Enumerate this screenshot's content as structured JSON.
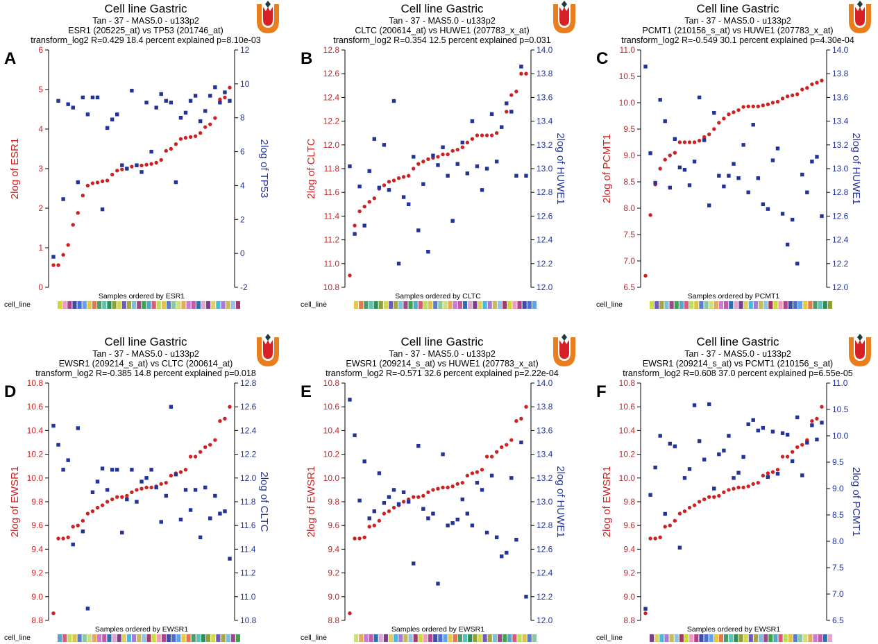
{
  "figure": {
    "colors": {
      "primary": "#cc2222",
      "secondary": "#223399",
      "axis": "#000000",
      "logo_orange": "#e87e1e",
      "logo_red": "#d71f26",
      "logo_dark": "#1f3a3a"
    },
    "cell_palette": [
      "#cdd83a",
      "#9b4a8c",
      "#4ab8d6",
      "#8fa03b",
      "#c25aa6",
      "#e7c84a",
      "#5a7fc8",
      "#f39bbf",
      "#3fa34d",
      "#a77bd1",
      "#d4d84e",
      "#2e6fb0",
      "#e3784a",
      "#88c9a1",
      "#b0448a",
      "#58a6c7",
      "#c9b85c",
      "#6f5bb8",
      "#e0a5d0",
      "#4d9a6a",
      "#cfe07a",
      "#3c4fa3",
      "#d65c7a",
      "#93c3e0",
      "#a8a248",
      "#7c3f8e",
      "#5dc2b3",
      "#e6a85a",
      "#4a6fd1",
      "#bde05c",
      "#a33a66",
      "#7bbfd9",
      "#dcd064",
      "#2f8f5a",
      "#c77ad6",
      "#63a1e8",
      "#e2c34a"
    ],
    "charts": [
      {
        "panel_label": "A",
        "chart_data": {
          "type": "scatter",
          "title": "Cell line Gastric",
          "subtitle": "Tan - 37 - MAS5.0 - u133p2",
          "comparison": "ESR1 (205225_at) vs TP53 (201746_at)",
          "stats": "transform_log2 R=0.429 18.4 percent explained p=8.10e-03",
          "xlabel": "Samples ordered by ESR1",
          "ylabel_left": "2log of ESR1",
          "ylabel_right": "2log of TP53",
          "row_label": "cell_line",
          "ylim_left": [
            0,
            6
          ],
          "ylim_right": [
            -2,
            12
          ],
          "yticks_left": [
            0,
            1,
            2,
            3,
            4,
            5,
            6
          ],
          "yticks_right": [
            -2,
            0,
            2,
            4,
            6,
            8,
            10,
            12
          ],
          "series": [
            {
              "name": "ESR1",
              "axis": "left",
              "values": [
                0.56,
                0.56,
                0.82,
                1.07,
                1.58,
                1.88,
                2.32,
                2.57,
                2.63,
                2.65,
                2.68,
                2.7,
                2.85,
                2.95,
                2.98,
                3.0,
                3.05,
                3.08,
                3.08,
                3.1,
                3.12,
                3.15,
                3.22,
                3.45,
                3.5,
                3.62,
                3.75,
                3.78,
                3.8,
                3.82,
                3.9,
                4.05,
                4.12,
                4.28,
                4.75,
                4.8,
                5.05
              ]
            },
            {
              "name": "TP53",
              "axis": "right",
              "values": [
                -0.2,
                9.0,
                3.2,
                8.8,
                8.6,
                4.2,
                9.2,
                8.2,
                9.2,
                9.2,
                2.6,
                7.4,
                7.9,
                8.2,
                5.2,
                5.0,
                9.6,
                5.2,
                4.8,
                8.9,
                6.0,
                8.6,
                9.4,
                9.0,
                8.9,
                4.2,
                8.0,
                8.3,
                9.0,
                9.3,
                7.8,
                8.4,
                9.3,
                9.8,
                8.9,
                9.5,
                9.0
              ]
            }
          ]
        }
      },
      {
        "panel_label": "B",
        "chart_data": {
          "type": "scatter",
          "title": "Cell line Gastric",
          "subtitle": "Tan - 37 - MAS5.0 - u133p2",
          "comparison": "CLTC (200614_at) vs HUWE1 (207783_x_at)",
          "stats": "transform_log2 R=0.354 12.5 percent explained p=0.031",
          "xlabel": "Samples ordered by CLTC",
          "ylabel_left": "2log of CLTC",
          "ylabel_right": "2log of HUWE1",
          "row_label": "cell_line",
          "ylim_left": [
            10.8,
            12.8
          ],
          "ylim_right": [
            12.0,
            14.0
          ],
          "yticks_left": [
            10.8,
            11.0,
            11.2,
            11.4,
            11.6,
            11.8,
            12.0,
            12.2,
            12.4,
            12.6,
            12.8
          ],
          "yticks_right": [
            12.0,
            12.2,
            12.4,
            12.6,
            12.8,
            13.0,
            13.2,
            13.4,
            13.6,
            13.8,
            14.0
          ],
          "series": [
            {
              "name": "CLTC",
              "axis": "left",
              "values": [
                10.9,
                11.32,
                11.44,
                11.48,
                11.52,
                11.55,
                11.63,
                11.66,
                11.69,
                11.7,
                11.72,
                11.73,
                11.74,
                11.8,
                11.84,
                11.86,
                11.88,
                11.89,
                11.9,
                11.92,
                11.92,
                11.95,
                11.96,
                11.98,
                12.02,
                12.05,
                12.08,
                12.08,
                12.08,
                12.08,
                12.1,
                12.15,
                12.28,
                12.42,
                12.45,
                12.6,
                12.6
              ]
            },
            {
              "name": "HUWE1",
              "axis": "right",
              "values": [
                13.02,
                12.45,
                12.85,
                12.52,
                12.98,
                13.25,
                12.84,
                13.2,
                12.82,
                13.57,
                12.2,
                12.76,
                12.7,
                13.1,
                12.48,
                12.87,
                12.3,
                13.11,
                13.03,
                13.18,
                12.94,
                12.56,
                13.04,
                13.22,
                12.96,
                13.4,
                13.02,
                12.82,
                13.0,
                13.46,
                13.06,
                13.35,
                13.55,
                13.48,
                12.94,
                13.86,
                12.94
              ]
            }
          ]
        }
      },
      {
        "panel_label": "C",
        "chart_data": {
          "type": "scatter",
          "title": "Cell line Gastric",
          "subtitle": "Tan - 37 - MAS5.0 - u133p2",
          "comparison": "PCMT1 (210156_s_at) vs HUWE1 (207783_x_at)",
          "stats": "transform_log2 R=-0.549 30.1 percent explained p=4.30e-04",
          "xlabel": "Samples ordered by PCMT1",
          "ylabel_left": "2log of PCMT1",
          "ylabel_right": "2log of HUWE1",
          "row_label": "cell_line",
          "ylim_left": [
            6.5,
            11.0
          ],
          "ylim_right": [
            12.0,
            14.0
          ],
          "yticks_left": [
            6.5,
            7.0,
            7.5,
            8.0,
            8.5,
            9.0,
            9.5,
            10.0,
            10.5,
            11.0
          ],
          "yticks_right": [
            12.0,
            12.2,
            12.4,
            12.6,
            12.8,
            13.0,
            13.2,
            13.4,
            13.6,
            13.8,
            14.0
          ],
          "series": [
            {
              "name": "PCMT1",
              "axis": "left",
              "values": [
                6.72,
                7.87,
                8.45,
                8.75,
                8.92,
                9.0,
                9.05,
                9.25,
                9.25,
                9.25,
                9.25,
                9.28,
                9.35,
                9.4,
                9.5,
                9.62,
                9.7,
                9.78,
                9.82,
                9.86,
                9.92,
                9.93,
                9.93,
                9.93,
                9.95,
                9.97,
                10.0,
                10.02,
                10.08,
                10.12,
                10.14,
                10.16,
                10.25,
                10.28,
                10.35,
                10.38,
                10.42
              ]
            },
            {
              "name": "HUWE1",
              "axis": "right",
              "values": [
                13.86,
                13.13,
                12.88,
                13.58,
                13.4,
                12.84,
                13.25,
                13.01,
                12.99,
                12.86,
                13.06,
                13.6,
                13.24,
                12.69,
                13.47,
                12.94,
                12.85,
                12.94,
                13.04,
                12.92,
                13.2,
                12.8,
                13.37,
                12.92,
                12.7,
                12.66,
                13.07,
                13.17,
                12.62,
                12.36,
                12.57,
                12.2,
                12.95,
                12.8,
                13.06,
                13.1,
                12.6
              ]
            }
          ]
        }
      },
      {
        "panel_label": "D",
        "chart_data": {
          "type": "scatter",
          "title": "Cell line Gastric",
          "subtitle": "Tan - 37 - MAS5.0 - u133p2",
          "comparison": "EWSR1 (209214_s_at) vs CLTC (200614_at)",
          "stats": "transform_log2 R=-0.385 14.8 percent explained p=0.018",
          "xlabel": "Samples ordered by EWSR1",
          "ylabel_left": "2log of EWSR1",
          "ylabel_right": "2log of CLTC",
          "row_label": "cell_line",
          "ylim_left": [
            8.8,
            10.8
          ],
          "ylim_right": [
            10.8,
            12.8
          ],
          "yticks_left": [
            8.8,
            9.0,
            9.2,
            9.4,
            9.6,
            9.8,
            10.0,
            10.2,
            10.4,
            10.6,
            10.8
          ],
          "yticks_right": [
            10.8,
            11.0,
            11.2,
            11.4,
            11.6,
            11.8,
            12.0,
            12.2,
            12.4,
            12.6,
            12.8
          ],
          "series": [
            {
              "name": "EWSR1",
              "axis": "left",
              "values": [
                8.86,
                9.49,
                9.49,
                9.5,
                9.59,
                9.6,
                9.64,
                9.7,
                9.72,
                9.75,
                9.77,
                9.8,
                9.82,
                9.84,
                9.84,
                9.85,
                9.88,
                9.9,
                9.91,
                9.92,
                9.92,
                9.93,
                9.95,
                9.96,
                10.02,
                10.04,
                10.05,
                10.07,
                10.18,
                10.18,
                10.22,
                10.26,
                10.28,
                10.32,
                10.48,
                10.5,
                10.6
              ]
            },
            {
              "name": "CLTC",
              "axis": "right",
              "values": [
                12.44,
                12.28,
                12.07,
                12.15,
                11.44,
                12.42,
                11.55,
                10.9,
                11.88,
                11.97,
                12.08,
                11.9,
                12.07,
                12.07,
                11.54,
                11.82,
                12.07,
                11.8,
                11.97,
                12.0,
                12.07,
                11.92,
                11.63,
                11.85,
                12.6,
                12.03,
                11.65,
                11.9,
                11.73,
                11.9,
                11.5,
                11.92,
                11.66,
                11.85,
                11.7,
                11.72,
                11.32
              ]
            }
          ]
        }
      },
      {
        "panel_label": "E",
        "chart_data": {
          "type": "scatter",
          "title": "Cell line Gastric",
          "subtitle": "Tan - 37 - MAS5.0 - u133p2",
          "comparison": "EWSR1 (209214_s_at) vs HUWE1 (207783_x_at)",
          "stats": "transform_log2 R=-0.571 32.6 percent explained p=2.22e-04",
          "xlabel": "Samples ordered by EWSR1",
          "ylabel_left": "2log of EWSR1",
          "ylabel_right": "2log of HUWE1",
          "row_label": "cell_line",
          "ylim_left": [
            8.8,
            10.8
          ],
          "ylim_right": [
            12.0,
            14.0
          ],
          "yticks_left": [
            8.8,
            9.0,
            9.2,
            9.4,
            9.6,
            9.8,
            10.0,
            10.2,
            10.4,
            10.6,
            10.8
          ],
          "yticks_right": [
            12.0,
            12.2,
            12.4,
            12.6,
            12.8,
            13.0,
            13.2,
            13.4,
            13.6,
            13.8,
            14.0
          ],
          "series": [
            {
              "name": "EWSR1",
              "axis": "left",
              "values": [
                8.86,
                9.49,
                9.49,
                9.5,
                9.59,
                9.6,
                9.64,
                9.7,
                9.72,
                9.75,
                9.77,
                9.8,
                9.82,
                9.84,
                9.84,
                9.85,
                9.88,
                9.9,
                9.91,
                9.92,
                9.92,
                9.93,
                9.95,
                9.96,
                10.02,
                10.04,
                10.05,
                10.07,
                10.18,
                10.18,
                10.22,
                10.26,
                10.28,
                10.32,
                10.48,
                10.5,
                10.6
              ]
            },
            {
              "name": "HUWE1",
              "axis": "right",
              "values": [
                13.86,
                13.56,
                13.01,
                13.34,
                12.86,
                12.92,
                13.24,
                12.99,
                13.04,
                13.1,
                12.98,
                13.08,
                13.0,
                12.48,
                13.47,
                12.94,
                12.86,
                12.9,
                12.31,
                13.4,
                12.8,
                12.82,
                12.85,
                13.02,
                12.9,
                12.8,
                13.16,
                13.1,
                12.74,
                13.22,
                12.7,
                12.54,
                12.57,
                13.2,
                12.68,
                13.5,
                12.2
              ]
            }
          ]
        }
      },
      {
        "panel_label": "F",
        "chart_data": {
          "type": "scatter",
          "title": "Cell line Gastric",
          "subtitle": "Tan - 37 - MAS5.0 - u133p2",
          "comparison": "EWSR1 (209214_s_at) vs PCMT1 (210156_s_at)",
          "stats": "transform_log2 R=0.608 37.0 percent explained p=6.55e-05",
          "xlabel": "Samples ordered by EWSR1",
          "ylabel_left": "2log of EWSR1",
          "ylabel_right": "2log of PCMT1",
          "row_label": "cell_line",
          "ylim_left": [
            8.8,
            10.8
          ],
          "ylim_right": [
            6.5,
            11.0
          ],
          "yticks_left": [
            8.8,
            9.0,
            9.2,
            9.4,
            9.6,
            9.8,
            10.0,
            10.2,
            10.4,
            10.6,
            10.8
          ],
          "yticks_right": [
            6.5,
            7.0,
            7.5,
            8.0,
            8.5,
            9.0,
            9.5,
            10.0,
            10.5,
            11.0
          ],
          "series": [
            {
              "name": "EWSR1",
              "axis": "left",
              "values": [
                8.86,
                9.49,
                9.49,
                9.5,
                9.59,
                9.6,
                9.64,
                9.7,
                9.72,
                9.75,
                9.77,
                9.8,
                9.82,
                9.84,
                9.84,
                9.85,
                9.88,
                9.9,
                9.91,
                9.92,
                9.92,
                9.93,
                9.95,
                9.96,
                10.02,
                10.04,
                10.05,
                10.07,
                10.18,
                10.18,
                10.22,
                10.26,
                10.28,
                10.32,
                10.48,
                10.5,
                10.6
              ]
            },
            {
              "name": "PCMT1",
              "axis": "right",
              "values": [
                6.72,
                8.88,
                9.4,
                10.0,
                8.52,
                9.85,
                9.8,
                7.88,
                9.2,
                9.37,
                10.58,
                9.9,
                9.55,
                10.6,
                9.0,
                9.65,
                9.72,
                10.0,
                9.2,
                9.3,
                9.6,
                10.22,
                10.3,
                10.1,
                10.15,
                9.22,
                10.08,
                9.28,
                10.05,
                10.02,
                9.52,
                10.35,
                9.25,
                9.87,
                10.2,
                9.93,
                10.25
              ]
            }
          ]
        }
      }
    ]
  }
}
